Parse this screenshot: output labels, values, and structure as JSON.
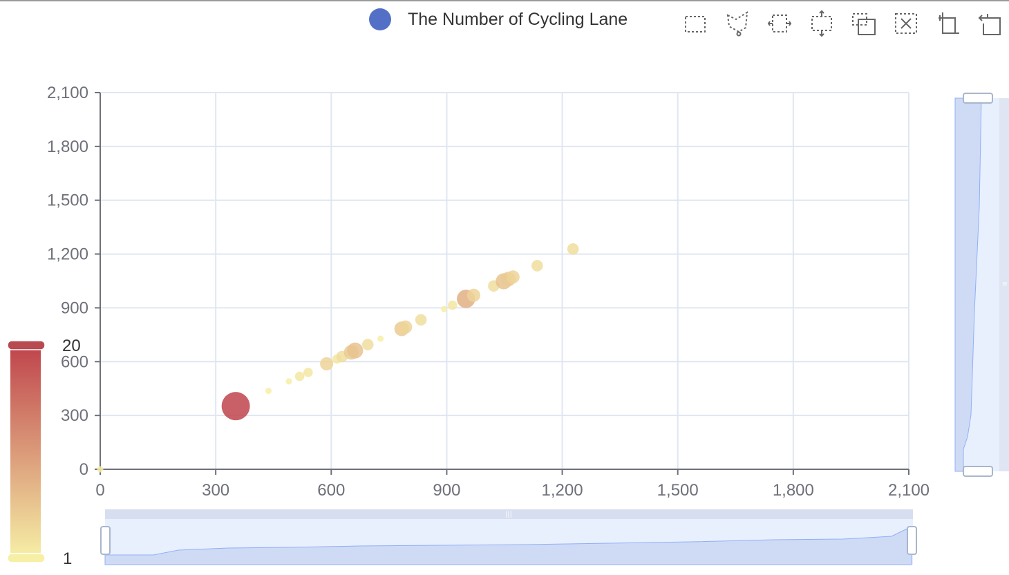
{
  "legend": {
    "label": "The Number of Cycling Lane",
    "color": "#5470c6"
  },
  "toolbox": {
    "icons": [
      "rect-select-icon",
      "lasso-select-icon",
      "keep-select-icon",
      "clear-select-icon",
      "zoom-icon",
      "zoom-reset-icon",
      "restore-icon",
      "back-icon"
    ]
  },
  "visual_map": {
    "max_label": "20",
    "min_label": "1",
    "color_low": "#f6efa6",
    "color_high": "#bf444c"
  },
  "chart_data": {
    "type": "scatter",
    "title": "",
    "xlabel": "",
    "ylabel": "",
    "xlim": [
      0,
      2100
    ],
    "ylim": [
      0,
      2100
    ],
    "x_ticks": [
      "0",
      "300",
      "600",
      "900",
      "1,200",
      "1,500",
      "1,800",
      "2,100"
    ],
    "y_ticks": [
      "0",
      "300",
      "600",
      "900",
      "1,200",
      "1,500",
      "1,800",
      "2,100"
    ],
    "grid": true,
    "series": [
      {
        "name": "The Number of Cycling Lane",
        "points": [
          {
            "x": 0,
            "y": 0,
            "value": 1
          },
          {
            "x": 352,
            "y": 352,
            "value": 20
          },
          {
            "x": 437,
            "y": 437,
            "value": 1
          },
          {
            "x": 490,
            "y": 490,
            "value": 1
          },
          {
            "x": 518,
            "y": 518,
            "value": 2
          },
          {
            "x": 540,
            "y": 540,
            "value": 2
          },
          {
            "x": 588,
            "y": 588,
            "value": 4
          },
          {
            "x": 615,
            "y": 615,
            "value": 2
          },
          {
            "x": 628,
            "y": 628,
            "value": 3
          },
          {
            "x": 652,
            "y": 652,
            "value": 5
          },
          {
            "x": 662,
            "y": 662,
            "value": 6
          },
          {
            "x": 695,
            "y": 695,
            "value": 3
          },
          {
            "x": 728,
            "y": 728,
            "value": 1
          },
          {
            "x": 783,
            "y": 783,
            "value": 5
          },
          {
            "x": 793,
            "y": 793,
            "value": 4
          },
          {
            "x": 833,
            "y": 833,
            "value": 3
          },
          {
            "x": 893,
            "y": 893,
            "value": 1
          },
          {
            "x": 915,
            "y": 915,
            "value": 2
          },
          {
            "x": 950,
            "y": 950,
            "value": 8
          },
          {
            "x": 970,
            "y": 970,
            "value": 4
          },
          {
            "x": 1022,
            "y": 1022,
            "value": 3
          },
          {
            "x": 1048,
            "y": 1048,
            "value": 6
          },
          {
            "x": 1060,
            "y": 1060,
            "value": 5
          },
          {
            "x": 1072,
            "y": 1072,
            "value": 4
          },
          {
            "x": 1135,
            "y": 1135,
            "value": 3
          },
          {
            "x": 1228,
            "y": 1228,
            "value": 3
          }
        ]
      }
    ]
  }
}
